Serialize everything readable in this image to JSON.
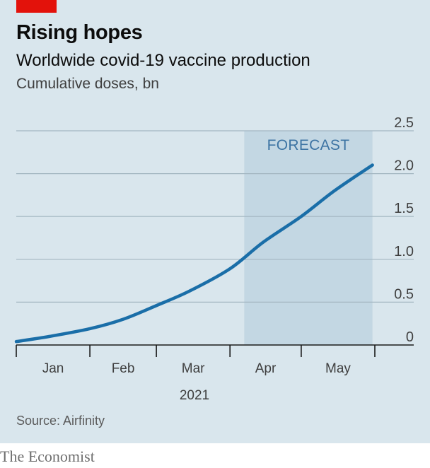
{
  "title": "Rising hopes",
  "subtitle": "Worldwide covid-19 vaccine production",
  "unit_label": "Cumulative doses, bn",
  "source": "Source: Airfinity",
  "brand": "The Economist",
  "colors": {
    "background": "#d9e6ed",
    "line": "#1a6ea8",
    "forecast_band": "#c3d7e3",
    "accent_red": "#e3120b"
  },
  "chart_data": {
    "type": "line",
    "title": "Worldwide covid-19 vaccine production",
    "ylabel": "Cumulative doses, bn",
    "xlabel": "2021",
    "year_label": "2021",
    "ylim": [
      0,
      2.5
    ],
    "y_ticks": [
      "0",
      "0.5",
      "1.0",
      "1.5",
      "2.0",
      "2.5"
    ],
    "y_tick_values": [
      0,
      0.5,
      1.0,
      1.5,
      2.0,
      2.5
    ],
    "x_ticks": [
      "Jan",
      "Feb",
      "Mar",
      "Apr",
      "May"
    ],
    "x_range": [
      "2021-01-01",
      "2021-06-01"
    ],
    "grid": true,
    "y_axis_position": "right",
    "forecast": {
      "label": "FORECAST",
      "start": "2021-04-07",
      "end": "2021-05-31"
    },
    "series": [
      {
        "x": [
          "2021-01-01",
          "2021-01-15",
          "2021-02-01",
          "2021-02-15",
          "2021-03-01",
          "2021-03-15",
          "2021-04-01",
          "2021-04-15",
          "2021-05-01",
          "2021-05-15",
          "2021-05-31"
        ],
        "values": [
          0.04,
          0.1,
          0.19,
          0.3,
          0.46,
          0.63,
          0.89,
          1.2,
          1.5,
          1.8,
          2.1
        ]
      }
    ]
  }
}
